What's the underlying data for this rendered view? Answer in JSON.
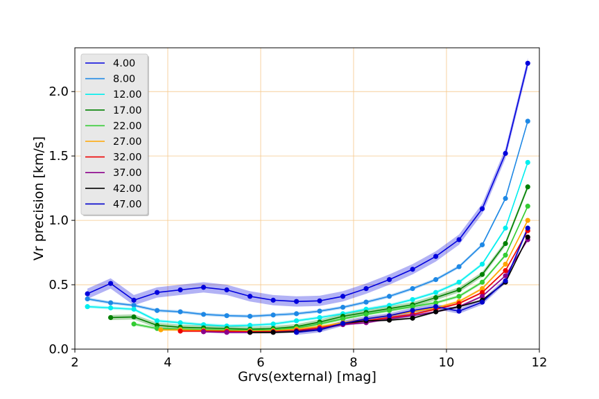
{
  "chart_data": {
    "type": "line",
    "xlabel": "Grvs(external) [mag]",
    "ylabel": "Vr precision [km/s]",
    "xlim": [
      2,
      12
    ],
    "ylim": [
      0,
      2.34
    ],
    "xticks": [
      2,
      4,
      6,
      8,
      10,
      12
    ],
    "yticks": [
      0.0,
      0.5,
      1.0,
      1.5,
      2.0
    ],
    "xtick_labels": [
      "2",
      "4",
      "6",
      "8",
      "10",
      "12"
    ],
    "ytick_labels": [
      "0.0",
      "0.5",
      "1.0",
      "1.5",
      "2.0"
    ],
    "grid": true,
    "grid_color": "#f5c78a",
    "legend_position": "top-left",
    "series": [
      {
        "name": "4.00",
        "color": "#0000dd",
        "band": 0.04,
        "x": [
          2.27,
          2.77,
          3.27,
          3.77,
          4.27,
          4.77,
          5.27,
          5.77,
          6.27,
          6.77,
          7.27,
          7.77,
          8.27,
          8.77,
          9.27,
          9.77,
          10.27,
          10.77,
          11.27,
          11.75
        ],
        "y": [
          0.43,
          0.51,
          0.38,
          0.44,
          0.46,
          0.48,
          0.46,
          0.41,
          0.38,
          0.37,
          0.375,
          0.41,
          0.47,
          0.54,
          0.62,
          0.72,
          0.85,
          1.09,
          1.52,
          2.22
        ]
      },
      {
        "name": "8.00",
        "color": "#1e88e5",
        "band": 0.012,
        "x": [
          2.27,
          2.77,
          3.27,
          3.77,
          4.27,
          4.77,
          5.27,
          5.77,
          6.27,
          6.77,
          7.27,
          7.77,
          8.27,
          8.77,
          9.27,
          9.77,
          10.27,
          10.77,
          11.27,
          11.75
        ],
        "y": [
          0.39,
          0.36,
          0.34,
          0.3,
          0.29,
          0.27,
          0.26,
          0.255,
          0.265,
          0.275,
          0.295,
          0.325,
          0.365,
          0.41,
          0.47,
          0.54,
          0.64,
          0.81,
          1.17,
          1.77
        ]
      },
      {
        "name": "12.00",
        "color": "#00eeee",
        "band": 0.012,
        "x": [
          2.27,
          2.77,
          3.27,
          3.77,
          4.27,
          4.77,
          5.27,
          5.77,
          6.27,
          6.77,
          7.27,
          7.77,
          8.27,
          8.77,
          9.27,
          9.77,
          10.27,
          10.77,
          11.27,
          11.75
        ],
        "y": [
          0.33,
          0.32,
          0.31,
          0.22,
          0.205,
          0.19,
          0.18,
          0.185,
          0.195,
          0.22,
          0.245,
          0.275,
          0.31,
          0.34,
          0.385,
          0.44,
          0.52,
          0.66,
          0.94,
          1.45
        ]
      },
      {
        "name": "17.00",
        "color": "#008000",
        "band": 0.02,
        "x": [
          2.77,
          3.27,
          3.77,
          4.27,
          4.77,
          5.27,
          5.77,
          6.27,
          6.77,
          7.27,
          7.77,
          8.27,
          8.77,
          9.27,
          9.77,
          10.27,
          10.77,
          11.27,
          11.75
        ],
        "y": [
          0.245,
          0.25,
          0.185,
          0.17,
          0.165,
          0.16,
          0.155,
          0.16,
          0.175,
          0.21,
          0.255,
          0.285,
          0.315,
          0.345,
          0.4,
          0.46,
          0.58,
          0.82,
          1.26
        ]
      },
      {
        "name": "22.00",
        "color": "#33cc33",
        "band": 0.012,
        "x": [
          3.27,
          3.77,
          4.27,
          4.77,
          5.27,
          5.77,
          6.27,
          6.77,
          7.27,
          7.77,
          8.27,
          8.77,
          9.27,
          9.77,
          10.27,
          10.77,
          11.27,
          11.75
        ],
        "y": [
          0.195,
          0.16,
          0.155,
          0.15,
          0.148,
          0.147,
          0.15,
          0.165,
          0.195,
          0.235,
          0.27,
          0.3,
          0.33,
          0.36,
          0.41,
          0.52,
          0.73,
          1.11
        ]
      },
      {
        "name": "27.00",
        "color": "#ffa500",
        "band": 0.01,
        "x": [
          3.85,
          4.27,
          4.77,
          5.27,
          5.77,
          6.27,
          6.77,
          7.27,
          7.77,
          8.27,
          8.77,
          9.27,
          9.77,
          10.27,
          10.77,
          11.27,
          11.75
        ],
        "y": [
          0.15,
          0.15,
          0.145,
          0.142,
          0.14,
          0.143,
          0.155,
          0.175,
          0.205,
          0.235,
          0.26,
          0.29,
          0.32,
          0.37,
          0.47,
          0.66,
          1.0
        ]
      },
      {
        "name": "32.00",
        "color": "#ee0000",
        "band": 0.008,
        "x": [
          4.27,
          4.77,
          5.27,
          5.77,
          6.27,
          6.77,
          7.27,
          7.77,
          8.27,
          8.77,
          9.27,
          9.77,
          10.27,
          10.77,
          11.27,
          11.75
        ],
        "y": [
          0.14,
          0.14,
          0.138,
          0.135,
          0.137,
          0.145,
          0.165,
          0.195,
          0.22,
          0.245,
          0.27,
          0.31,
          0.355,
          0.44,
          0.61,
          0.92
        ]
      },
      {
        "name": "37.00",
        "color": "#8b008b",
        "band": 0.008,
        "x": [
          4.77,
          5.27,
          5.77,
          6.27,
          6.77,
          7.27,
          7.77,
          8.27,
          8.77,
          9.27,
          9.77,
          10.27,
          10.77,
          11.27,
          11.75
        ],
        "y": [
          0.135,
          0.13,
          0.13,
          0.132,
          0.14,
          0.16,
          0.19,
          0.205,
          0.235,
          0.26,
          0.29,
          0.33,
          0.41,
          0.57,
          0.85
        ]
      },
      {
        "name": "42.00",
        "color": "#000000",
        "band": 0.008,
        "x": [
          5.77,
          6.27,
          6.77,
          7.27,
          7.77,
          8.27,
          8.77,
          9.27,
          9.77,
          10.27,
          10.77,
          11.27,
          11.75
        ],
        "y": [
          0.13,
          0.13,
          0.135,
          0.15,
          0.2,
          0.22,
          0.225,
          0.24,
          0.29,
          0.33,
          0.38,
          0.52,
          0.87
        ]
      },
      {
        "name": "47.00",
        "color": "#0000cc",
        "band": 0.02,
        "x": [
          6.77,
          7.27,
          7.77,
          8.27,
          8.77,
          9.27,
          9.77,
          10.27,
          10.77,
          11.27,
          11.75
        ],
        "y": [
          0.13,
          0.15,
          0.2,
          0.235,
          0.26,
          0.3,
          0.33,
          0.295,
          0.365,
          0.53,
          0.94
        ]
      }
    ]
  }
}
